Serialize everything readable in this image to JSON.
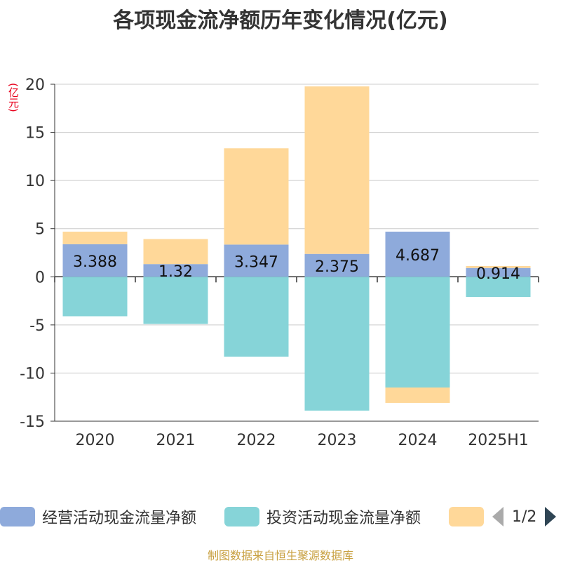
{
  "title": "各项现金流净额历年变化情况(亿元)",
  "unit_label": "(亿元)",
  "footer": "制图数据来自恒生聚源数据库",
  "legend": {
    "items": [
      {
        "label": "经营活动现金流量净额",
        "color": "#8eaadb"
      },
      {
        "label": "投资活动现金流量净额",
        "color": "#86d4d8"
      },
      {
        "label": "",
        "color": "#ffd899"
      }
    ],
    "page": "1/2"
  },
  "chart_data": {
    "type": "bar",
    "stacked": true,
    "categories": [
      "2020",
      "2021",
      "2022",
      "2023",
      "2024",
      "2025H1"
    ],
    "ylim": [
      -15,
      20
    ],
    "yticks": [
      -15,
      -10,
      -5,
      0,
      5,
      10,
      15,
      20
    ],
    "grid": true,
    "series": [
      {
        "name": "经营活动现金流量净额",
        "color": "#8eaadb",
        "values": [
          3.388,
          1.32,
          3.347,
          2.375,
          4.687,
          0.914
        ],
        "labels": [
          "3.388",
          "1.32",
          "3.347",
          "2.375",
          "4.687",
          "0.914"
        ]
      },
      {
        "name": "投资活动现金流量净额",
        "color": "#86d4d8",
        "values": [
          -4.1,
          -4.9,
          -8.3,
          -13.9,
          -11.5,
          -2.1
        ]
      },
      {
        "color": "#ffd899",
        "values": [
          1.3,
          2.6,
          10.0,
          17.4,
          -1.6,
          0.2
        ]
      }
    ]
  }
}
